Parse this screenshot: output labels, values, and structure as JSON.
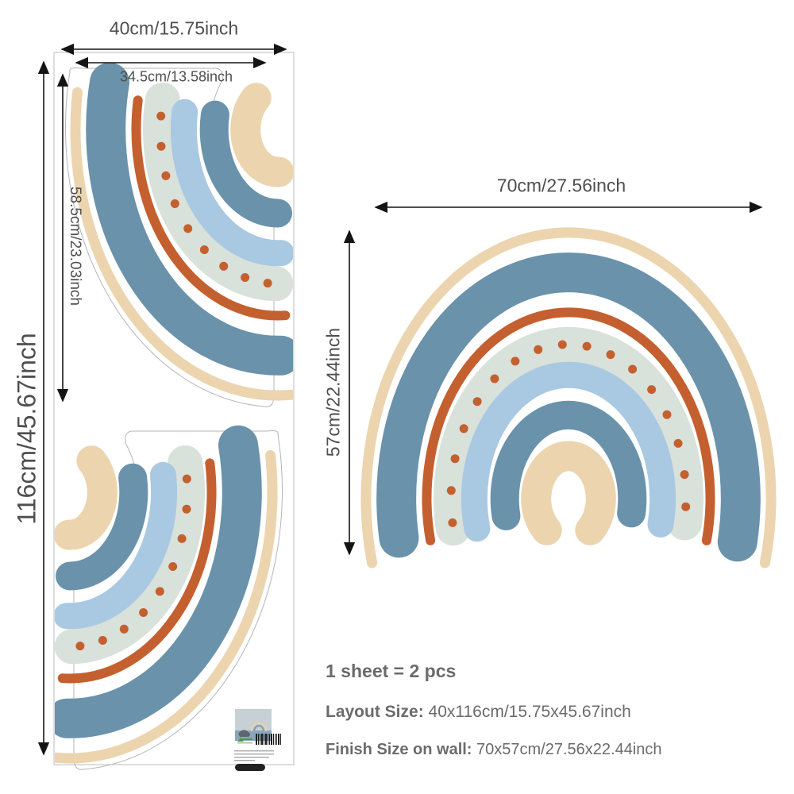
{
  "sheet": {
    "width_label": "40cm/15.75inch",
    "inner_width_label": "34.5cm/13.58inch",
    "height_label": "116cm/45.67inch",
    "piece_height_label": "58.5cm/23.03inch"
  },
  "wall": {
    "width_label": "70cm/27.56inch",
    "height_label": "57cm/22.44inch"
  },
  "summary": {
    "sheet_line": "1 sheet = 2 pcs",
    "layout_label": "Layout Size:",
    "layout_value": " 40x116cm/15.75x45.67inch",
    "finish_label": "Finish Size on wall:",
    "finish_value": " 70x57cm/27.56x22.44inch"
  },
  "rainbow_bands": [
    "tan",
    "steel_blue",
    "orange",
    "sage",
    "light_blue",
    "steel_blue",
    "tan"
  ],
  "colors": {
    "tan": "#ecd4ae",
    "steel_blue": "#6a92ab",
    "orange": "#c4602f",
    "sage": "#d8e1da",
    "light_blue": "#a9c9e2",
    "dot_orange": "#c4602f",
    "dimension_text": "#4f4f4f",
    "summary_text": "#6b6b6b",
    "arrow": "#141414",
    "sheet_border": "#c9c9c9",
    "cut_contour": "#b5b5b5"
  }
}
